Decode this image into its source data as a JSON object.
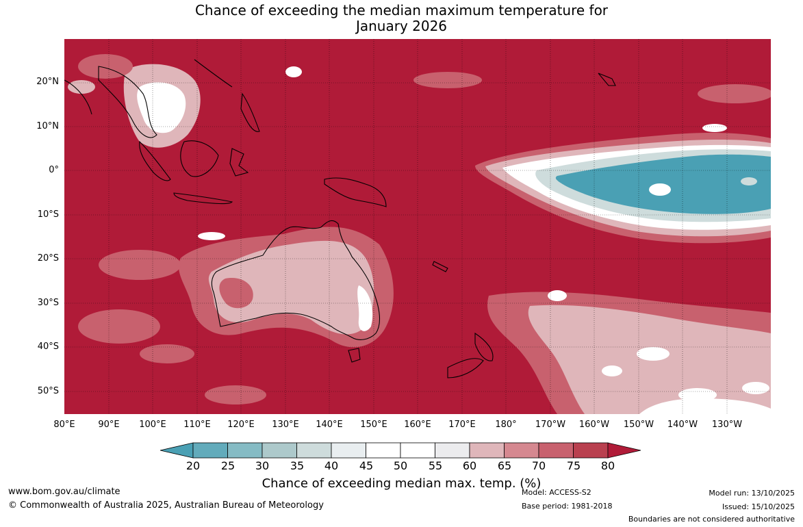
{
  "title_line1": "Chance of exceeding the median maximum temperature for",
  "title_line2": "January 2026",
  "lat_labels": [
    "20°N",
    "10°N",
    "0°",
    "10°S",
    "20°S",
    "30°S",
    "40°S",
    "50°S"
  ],
  "lon_labels": [
    "80°E",
    "90°E",
    "100°E",
    "110°E",
    "120°E",
    "130°E",
    "140°E",
    "150°E",
    "160°E",
    "170°E",
    "180°",
    "170°W",
    "160°W",
    "150°W",
    "140°W",
    "130°W"
  ],
  "colorbar": {
    "ticks": [
      "20",
      "25",
      "30",
      "35",
      "40",
      "45",
      "50",
      "55",
      "60",
      "65",
      "70",
      "75",
      "80"
    ],
    "colors": [
      "#4aa0b4",
      "#62abbb",
      "#85bbc4",
      "#adc9cb",
      "#cedcdc",
      "#e9eef0",
      "#ffffff",
      "#ffffff",
      "#ececee",
      "#dfb6ba",
      "#d58890",
      "#c8616e",
      "#b9404f"
    ],
    "under_color": "#4aa0b4",
    "over_color": "#b01b38",
    "label": "Chance of exceeding median max. temp. (%)"
  },
  "colors": {
    "background_high": "#b01b38",
    "pink_light": "#dfb6ba",
    "pink_mid": "#c8616e",
    "teal": "#4aa0b4",
    "coast": "#000000"
  },
  "footer": {
    "website": "www.bom.gov.au/climate",
    "copyright": "© Commonwealth of Australia 2025, Australian Bureau of Meteorology",
    "model": "Model: ACCESS-S2",
    "base_period": "Base period: 1981-2018",
    "model_run": "Model run: 13/10/2025",
    "issued": "Issued: 15/10/2025",
    "disclaimer": "Boundaries are not considered authoritative"
  }
}
